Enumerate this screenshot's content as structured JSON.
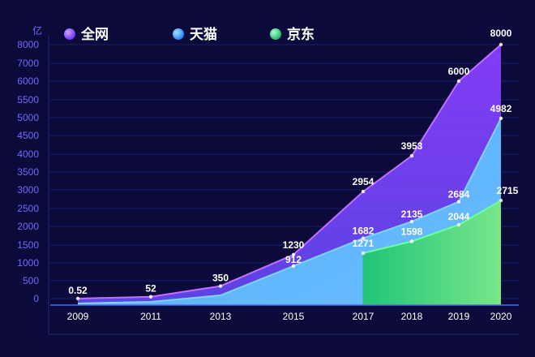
{
  "chart_data": {
    "type": "area",
    "ylabel": "亿",
    "yticks": [
      0,
      500,
      1000,
      1500,
      2000,
      2500,
      3000,
      3500,
      4000,
      4500,
      5000,
      5500,
      6000,
      7000,
      8000
    ],
    "categories": [
      "2009",
      "2011",
      "2013",
      "2015",
      "2017",
      "2018",
      "2019",
      "2020"
    ],
    "legend_position": "top",
    "grid": true,
    "series": [
      {
        "name": "全网",
        "color": "#8a4dff",
        "values": [
          0.52,
          52,
          350,
          1230,
          2954,
          3953,
          6000,
          8000
        ],
        "labels": [
          "0.52",
          "52",
          "350",
          "1230",
          "2954",
          "3953",
          "6000",
          "8000"
        ]
      },
      {
        "name": "天猫",
        "color": "#3aa6ff",
        "values": [
          null,
          null,
          null,
          912,
          1682,
          2135,
          2684,
          4982
        ],
        "labels": [
          "",
          "",
          "",
          "912",
          "1682",
          "2135",
          "2684",
          "4982"
        ]
      },
      {
        "name": "京东",
        "color": "#2fd58a",
        "values": [
          null,
          null,
          null,
          null,
          1271,
          1598,
          2044,
          2715
        ],
        "labels": [
          "",
          "",
          "",
          "",
          "1271",
          "1598",
          "2044",
          "2715"
        ]
      }
    ]
  }
}
